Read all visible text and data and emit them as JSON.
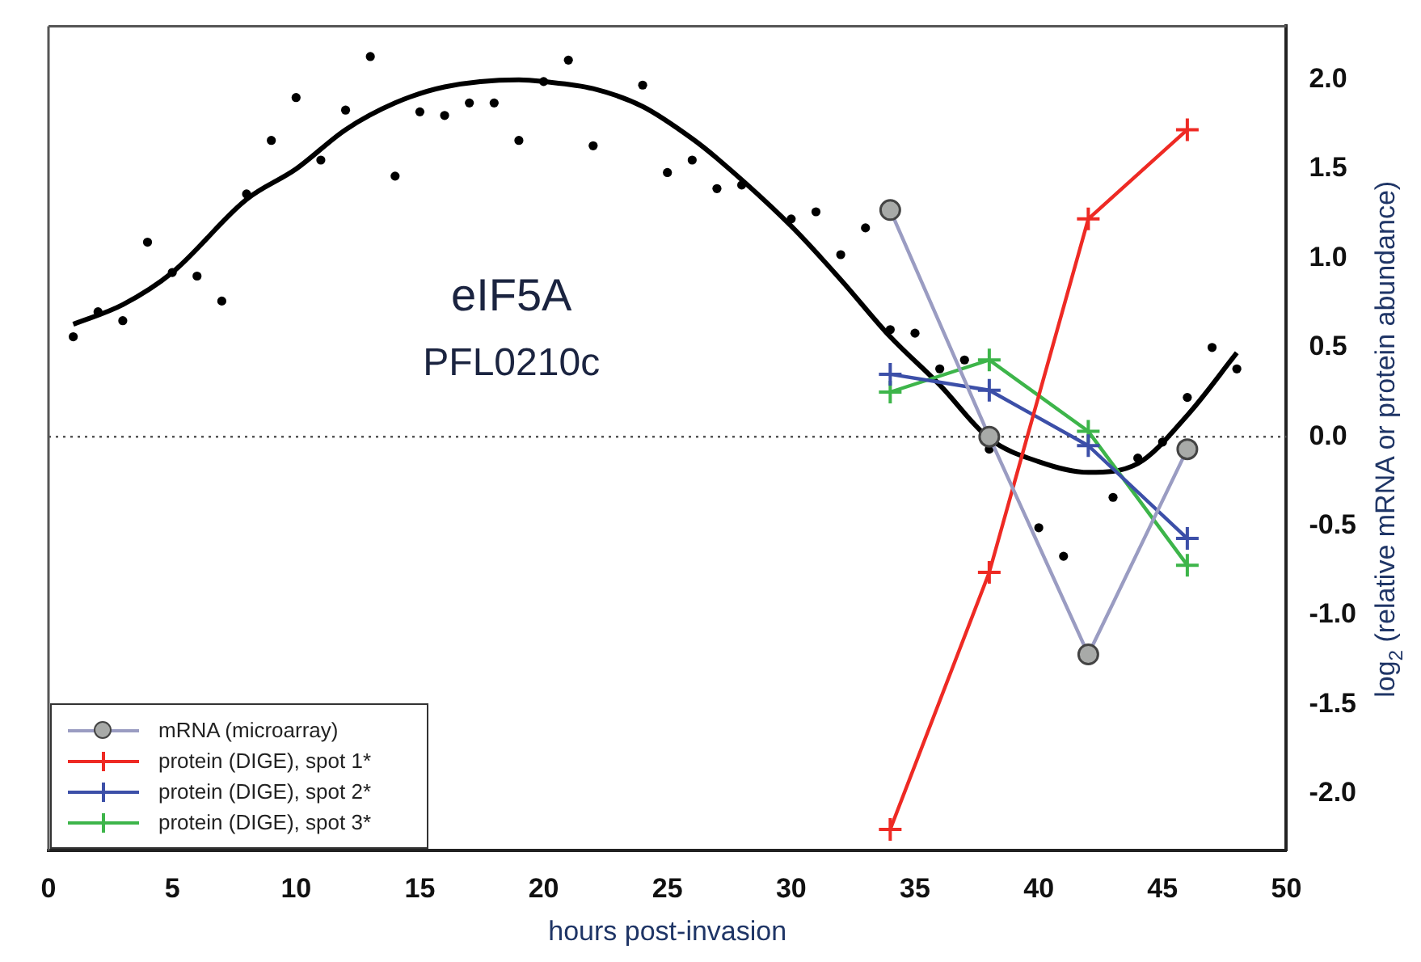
{
  "chart_data": {
    "type": "line",
    "xlabel": "hours post-invasion",
    "ylabel": "log$_{2}$ (relative mRNA or protein abundance)",
    "annotations": [
      "eIF5A",
      "PFL0210c"
    ],
    "xlim": [
      0,
      50
    ],
    "xticks": [
      0,
      5,
      10,
      15,
      20,
      25,
      30,
      35,
      40,
      45,
      50
    ],
    "ylim": [
      -2.32,
      2.3
    ],
    "yticks": [
      {
        "value": -2,
        "label": "-2.0"
      },
      {
        "value": -1.5,
        "label": "-1.5"
      },
      {
        "value": -1,
        "label": "-1.0"
      },
      {
        "value": -0.5,
        "label": "-0.5"
      },
      {
        "value": 0,
        "label": "0.0"
      },
      {
        "value": 0.5,
        "label": "0.5"
      },
      {
        "value": 1,
        "label": "1.0"
      },
      {
        "value": 1.5,
        "label": "1.5"
      },
      {
        "value": 2,
        "label": "2.0"
      }
    ],
    "grid": false,
    "legend": "bottom left",
    "ref_lines": [
      {
        "axis": "y",
        "value": 0,
        "line_style": "dotted",
        "color": "#555555"
      }
    ],
    "series": [
      {
        "type": "scatter",
        "marker": "circle",
        "color": "#000000",
        "x": [
          1,
          2,
          3,
          4,
          5,
          6,
          7,
          8,
          9,
          10,
          11,
          12,
          13,
          14,
          15,
          16,
          17,
          18,
          19,
          20,
          21,
          22,
          24,
          25,
          26,
          27,
          28,
          30,
          31,
          32,
          33,
          34,
          35,
          36,
          37,
          38,
          40,
          41,
          43,
          44,
          45,
          46,
          47,
          48
        ],
        "values": [
          0.56,
          0.7,
          0.65,
          1.09,
          0.92,
          0.9,
          0.76,
          1.36,
          1.66,
          1.9,
          1.55,
          1.83,
          2.13,
          1.46,
          1.82,
          1.8,
          1.87,
          1.87,
          1.66,
          1.99,
          2.11,
          1.63,
          1.97,
          1.48,
          1.55,
          1.39,
          1.41,
          1.22,
          1.26,
          1.02,
          1.17,
          0.6,
          0.58,
          0.38,
          0.43,
          -0.07,
          -0.51,
          -0.67,
          -0.34,
          -0.12,
          -0.03,
          0.22,
          0.5,
          0.38
        ]
      },
      {
        "type": "line",
        "marker": "none",
        "color": "#000000",
        "x": [
          1,
          3,
          5,
          8,
          10,
          12,
          14,
          16,
          19,
          20,
          22,
          24,
          26,
          27,
          30,
          32,
          34,
          36,
          38,
          40,
          42,
          44,
          46,
          48
        ],
        "values": [
          0.63,
          0.74,
          0.92,
          1.33,
          1.5,
          1.72,
          1.87,
          1.96,
          2.0,
          1.99,
          1.95,
          1.85,
          1.67,
          1.56,
          1.18,
          0.88,
          0.56,
          0.29,
          -0.01,
          -0.14,
          -0.2,
          -0.15,
          0.12,
          0.47
        ]
      },
      {
        "type": "line",
        "name": "mRNA (microarray)",
        "marker": "circle",
        "color": "#9a9cc2",
        "x": [
          34,
          38,
          42,
          46
        ],
        "values": [
          1.27,
          0.0,
          -1.22,
          -0.07
        ]
      },
      {
        "type": "line",
        "name": "protein (DIGE), spot 1*",
        "marker": "cross",
        "color": "#ee2a24",
        "x": [
          34,
          38,
          42,
          46
        ],
        "values": [
          -2.2,
          -0.76,
          1.22,
          1.72
        ]
      },
      {
        "type": "line",
        "name": "protein (DIGE), spot 2*",
        "marker": "cross",
        "color": "#3c4fa8",
        "x": [
          34,
          38,
          42,
          46
        ],
        "values": [
          0.35,
          0.26,
          -0.05,
          -0.57
        ]
      },
      {
        "type": "line",
        "name": "protein (DIGE), spot 3*",
        "marker": "cross",
        "color": "#3db54a",
        "x": [
          34,
          38,
          42,
          46
        ],
        "values": [
          0.25,
          0.43,
          0.03,
          -0.72
        ]
      }
    ]
  }
}
